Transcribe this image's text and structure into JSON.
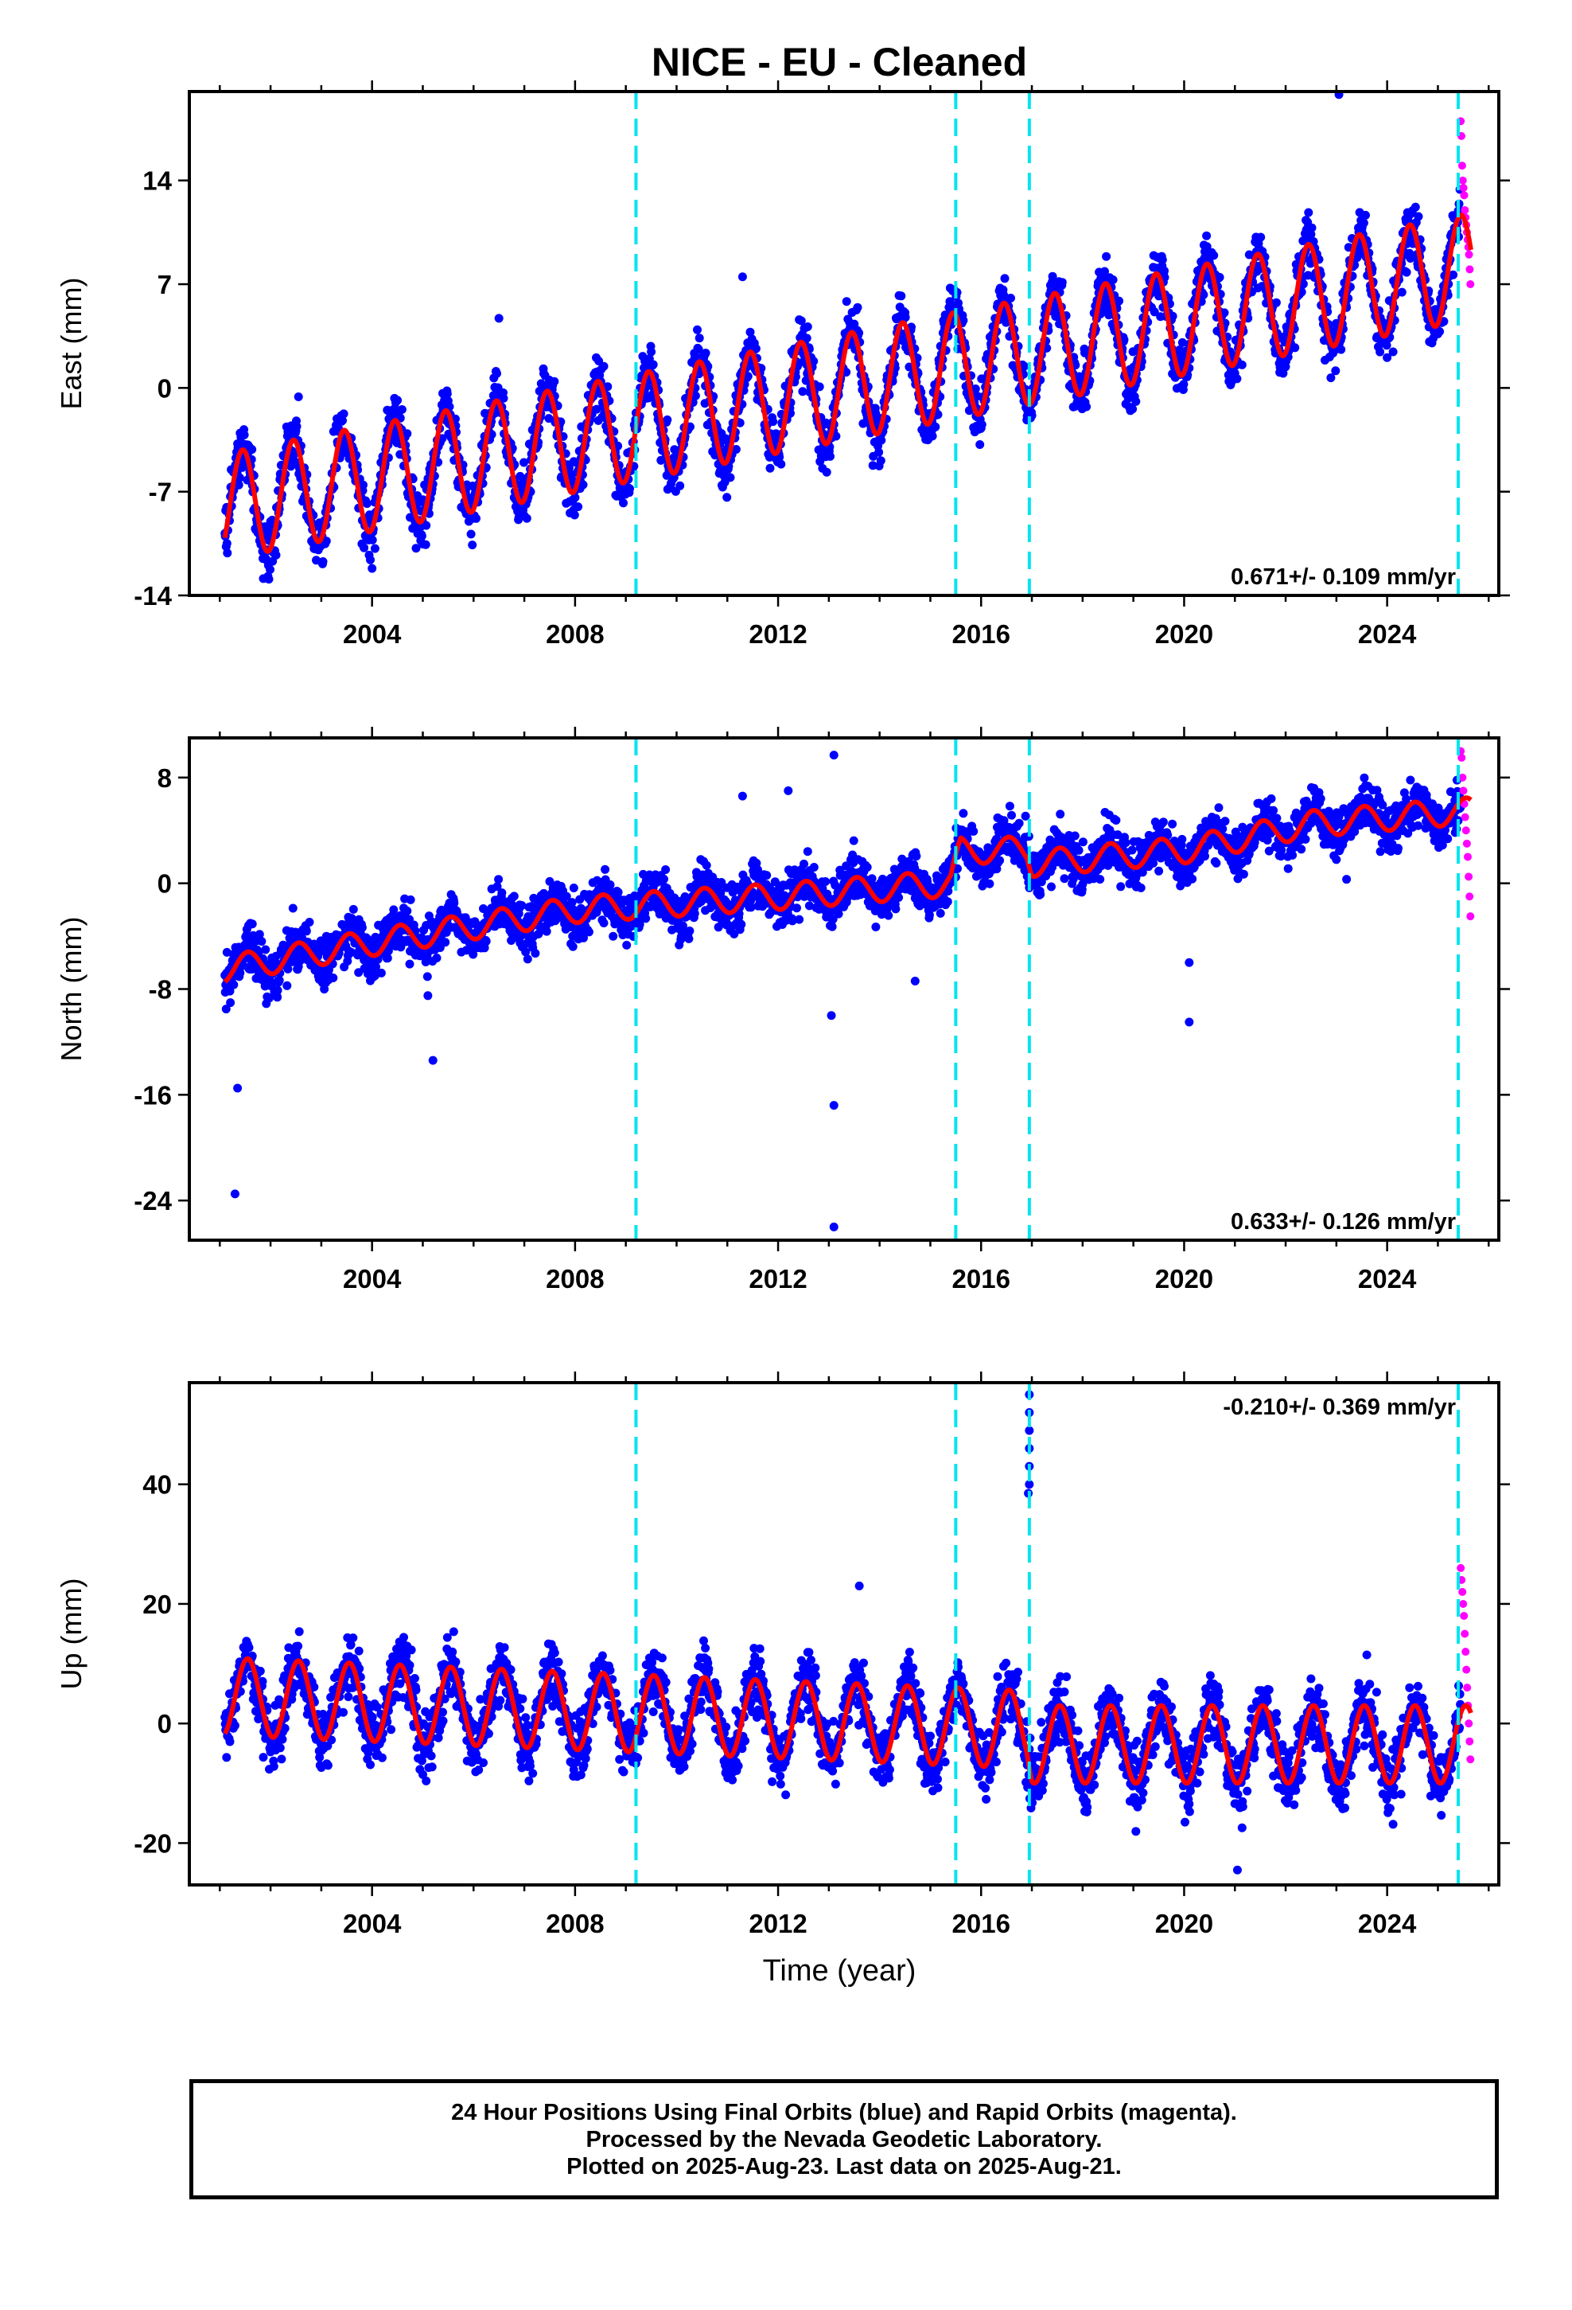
{
  "title": "NICE  - EU - Cleaned",
  "footer": {
    "lines": [
      "24 Hour Positions Using Final Orbits (blue) and Rapid Orbits (magenta).",
      "Processed by the Nevada Geodetic Laboratory.",
      "Plotted on 2025-Aug-23. Last data on 2025-Aug-21."
    ]
  },
  "colors": {
    "final_orbits": "#0000ff",
    "rapid_orbits": "#ff00ff",
    "model": "#ff0000",
    "events": "#00e5ee"
  },
  "x_axis": {
    "label": "Time (year)",
    "range": [
      2000.4,
      2026.2
    ],
    "ticks": [
      "2004",
      "2008",
      "2012",
      "2016",
      "2020",
      "2024"
    ],
    "tick_values": [
      2004,
      2008,
      2012,
      2016,
      2020,
      2024
    ]
  },
  "chart_data": [
    {
      "type": "scatter",
      "component": "east",
      "ylabel": "East (mm)",
      "ylim": [
        -14,
        20
      ],
      "yticks": [
        "-14",
        "-7",
        "0",
        "7",
        "14"
      ],
      "ytick_values": [
        -14,
        -7,
        0,
        7,
        14
      ],
      "rate_label": "0.671+/- 0.109 mm/yr",
      "rate_position": "bottom-right",
      "events": [
        2009.2,
        2015.5,
        2016.95,
        2025.4
      ],
      "model": {
        "start_year": 2001.1,
        "end_year": 2025.65,
        "start_value": -8,
        "rate": 0.66,
        "annual_amplitude": 3.6,
        "phase_peak_fraction": 0.45
      },
      "final_orbits": {
        "end_year": 2025.45,
        "scatter_mm": 1.6,
        "outliers": [
          [
            2023.05,
            19.8
          ],
          [
            2011.3,
            7.5
          ],
          [
            2006.5,
            4.7
          ]
        ]
      },
      "rapid_orbits": {
        "start_year": 2025.45,
        "end_year": 2025.64,
        "values": [
          18,
          17,
          15,
          14,
          13.5,
          13,
          12,
          11.5,
          11,
          10.5,
          10,
          9.5,
          9,
          8,
          7
        ]
      }
    },
    {
      "type": "scatter",
      "component": "north",
      "ylabel": "North (mm)",
      "ylim": [
        -27,
        11
      ],
      "yticks": [
        "-24",
        "-16",
        "-8",
        "0",
        "8"
      ],
      "ytick_values": [
        -24,
        -16,
        -8,
        0,
        8
      ],
      "rate_label": "0.633+/- 0.126 mm/yr",
      "rate_position": "bottom-right",
      "events": [
        2009.2,
        2015.5,
        2016.95,
        2025.4
      ],
      "model": {
        "breakpoints": [
          [
            2001.1,
            -6.5
          ],
          [
            2004,
            -4.5
          ],
          [
            2008,
            -2
          ],
          [
            2012,
            -1
          ],
          [
            2015.4,
            0
          ],
          [
            2015.6,
            2.5
          ],
          [
            2016.9,
            2.5
          ],
          [
            2017,
            1.5
          ],
          [
            2020,
            2.5
          ],
          [
            2022.5,
            4.5
          ],
          [
            2025.65,
            5.5
          ]
        ],
        "annual_amplitude": 1.0,
        "phase_peak_fraction": 0.55
      },
      "final_orbits": {
        "end_year": 2025.45,
        "scatter_mm": 1.5,
        "outliers": [
          [
            2001.3,
            -23.5
          ],
          [
            2001.35,
            -15.5
          ],
          [
            2013.1,
            9.7
          ],
          [
            2013.05,
            -10
          ],
          [
            2013.1,
            -16.8
          ],
          [
            2013.1,
            -26
          ],
          [
            2014.7,
            -7.4
          ],
          [
            2020.1,
            -6
          ],
          [
            2020.1,
            -10.5
          ],
          [
            2005.2,
            -13.4
          ],
          [
            2005.1,
            -8.5
          ],
          [
            2011.3,
            6.6
          ],
          [
            2012.2,
            7
          ],
          [
            2023.2,
            0.3
          ]
        ]
      },
      "rapid_orbits": {
        "start_year": 2025.45,
        "end_year": 2025.64,
        "values": [
          10,
          9.5,
          8,
          7,
          6,
          5,
          4,
          3,
          2,
          0.5,
          -1,
          -2.5
        ]
      }
    },
    {
      "type": "scatter",
      "component": "up",
      "ylabel": "Up (mm)",
      "ylim": [
        -27,
        57
      ],
      "yticks": [
        "-20",
        "0",
        "20",
        "40"
      ],
      "ytick_values": [
        -20,
        0,
        20,
        40
      ],
      "rate_label": "-0.210+/- 0.369 mm/yr",
      "rate_position": "top-right",
      "events": [
        2009.2,
        2015.5,
        2016.95,
        2025.4
      ],
      "model": {
        "breakpoints": [
          [
            2001.1,
            4.5
          ],
          [
            2016.9,
            -1
          ],
          [
            2017.0,
            -3.5
          ],
          [
            2025.65,
            -3.5
          ]
        ],
        "annual_amplitude": 6.5,
        "phase_peak_fraction": 0.55
      },
      "final_orbits": {
        "end_year": 2025.45,
        "scatter_mm": 4.5,
        "outliers": [
          [
            2016.95,
            55
          ],
          [
            2016.95,
            52
          ],
          [
            2016.95,
            49
          ],
          [
            2016.95,
            46
          ],
          [
            2016.95,
            43
          ],
          [
            2016.95,
            40
          ],
          [
            2016.93,
            38.5
          ],
          [
            2013.6,
            23
          ],
          [
            2021.05,
            -24.5
          ]
        ]
      },
      "rapid_orbits": {
        "start_year": 2025.45,
        "end_year": 2025.64,
        "values": [
          26,
          24,
          22,
          20,
          18,
          15,
          12,
          9,
          6,
          3,
          0,
          -3,
          -6
        ]
      }
    }
  ]
}
